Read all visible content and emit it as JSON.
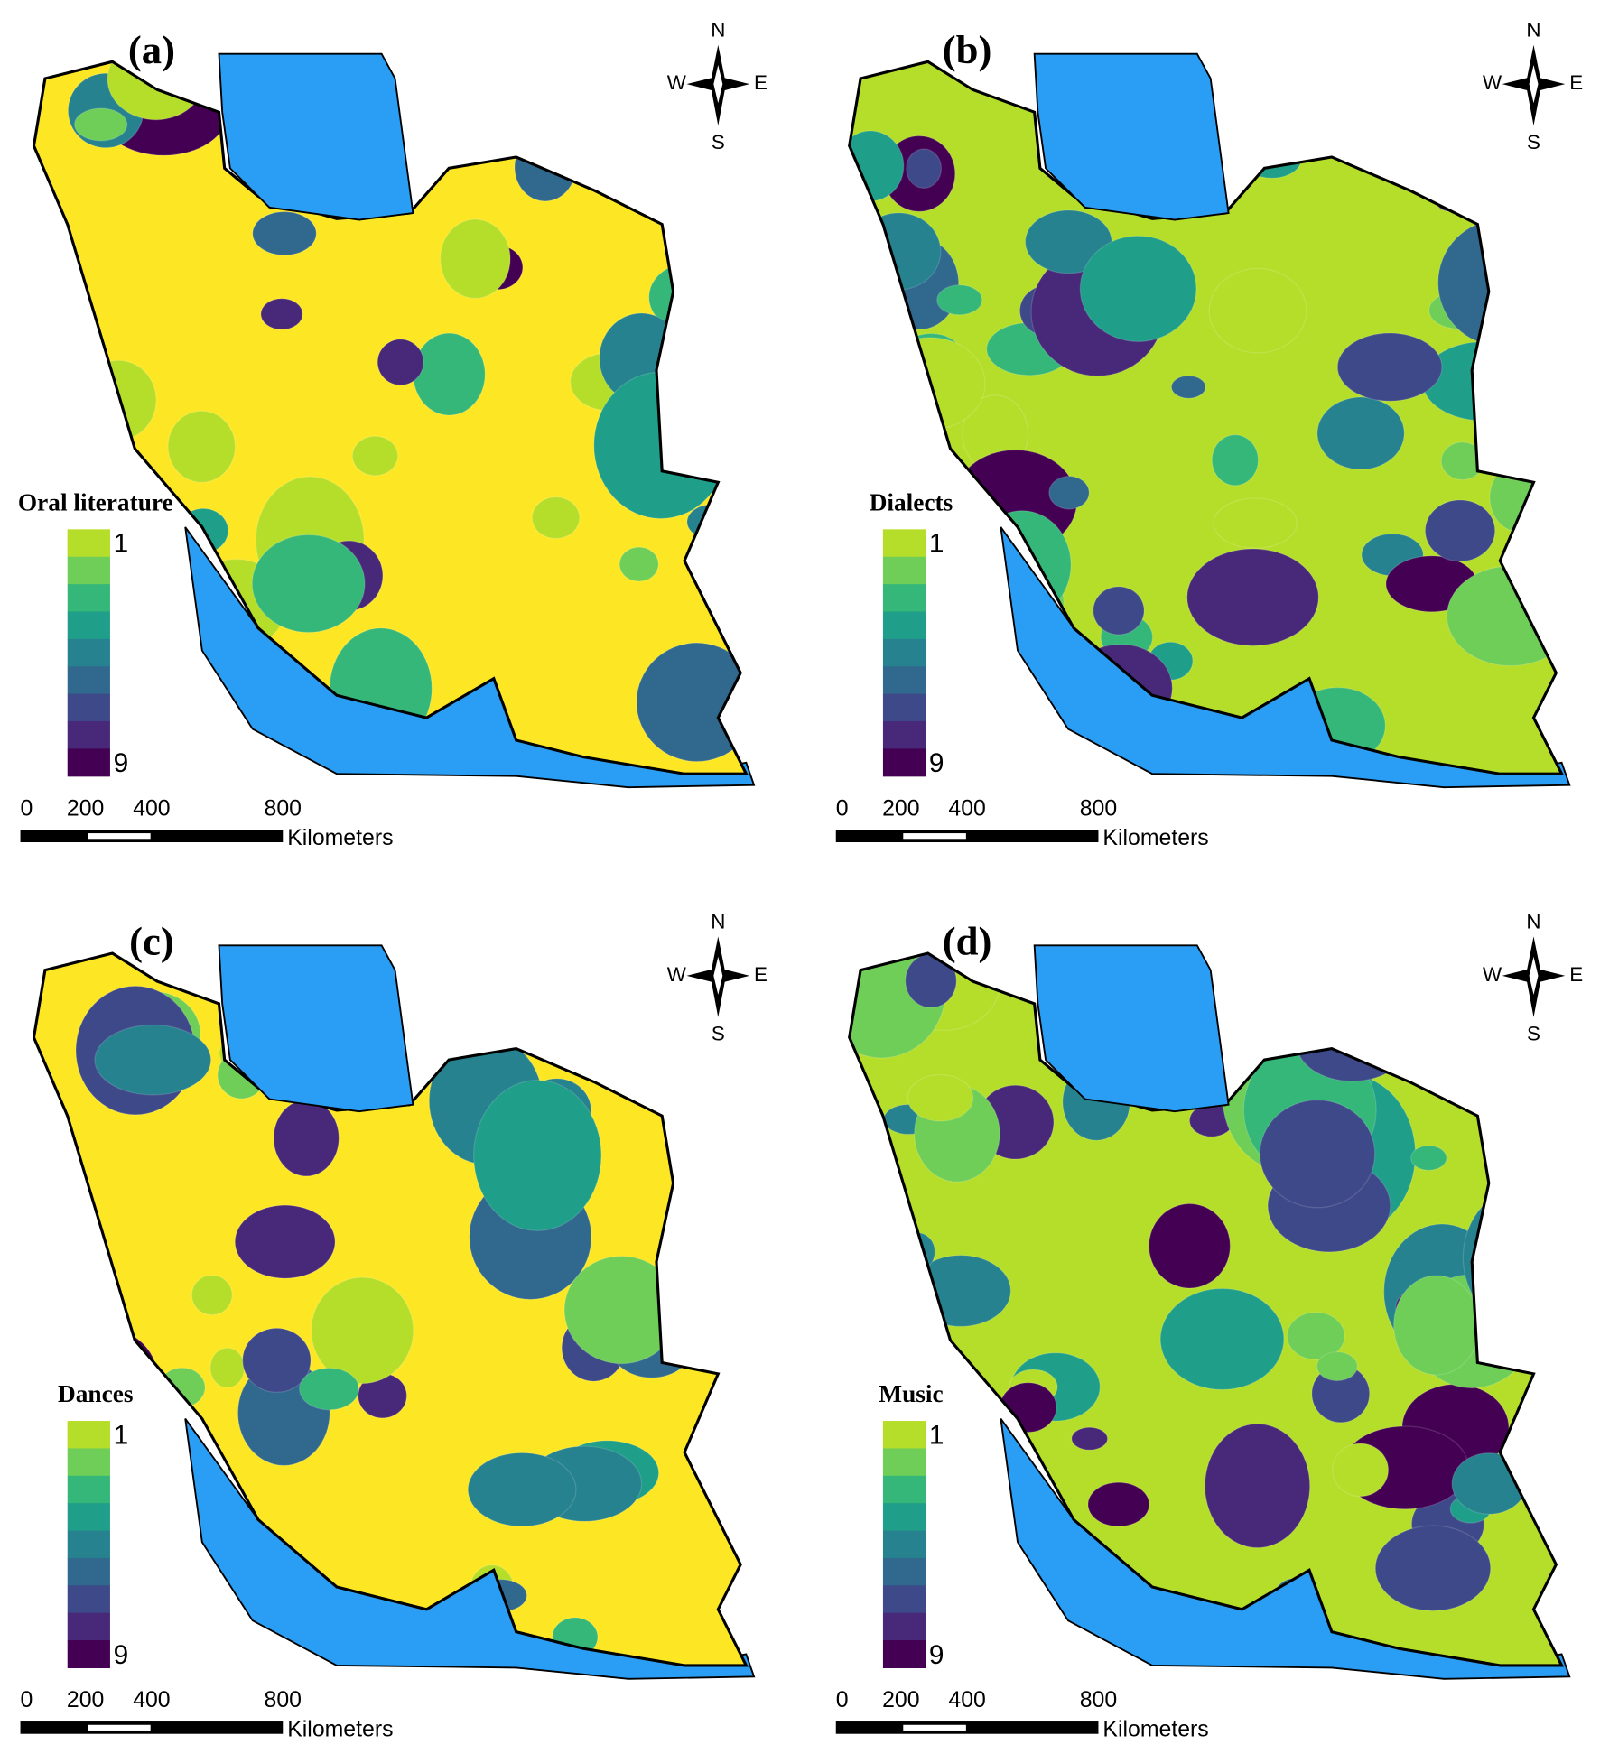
{
  "colors": [
    "#fde725",
    "#b5de2b",
    "#6ece58",
    "#35b779",
    "#1f9e89",
    "#26828e",
    "#31688e",
    "#3e4989",
    "#482878",
    "#440154"
  ],
  "water_color": "#2a9df4",
  "panels": [
    {
      "label": "(a)",
      "legend": {
        "title": "Oral literature",
        "min": "1",
        "max": "9"
      },
      "scale": {
        "ticks": [
          "0",
          "200",
          "400",
          "800"
        ],
        "unit": "Kilometers"
      },
      "compass": {
        "n": "N",
        "s": "S",
        "w": "W",
        "e": "E"
      }
    },
    {
      "label": "(b)",
      "legend": {
        "title": "Dialects",
        "min": "1",
        "max": "9"
      },
      "scale": {
        "ticks": [
          "0",
          "200",
          "400",
          "800"
        ],
        "unit": "Kilometers"
      },
      "compass": {
        "n": "N",
        "s": "S",
        "w": "W",
        "e": "E"
      }
    },
    {
      "label": "(c)",
      "legend": {
        "title": "Dances",
        "min": "1",
        "max": "9"
      },
      "scale": {
        "ticks": [
          "0",
          "200",
          "400",
          "800"
        ],
        "unit": "Kilometers"
      },
      "compass": {
        "n": "N",
        "s": "S",
        "w": "W",
        "e": "E"
      }
    },
    {
      "label": "(d)",
      "legend": {
        "title": "Music",
        "min": "1",
        "max": "9"
      },
      "scale": {
        "ticks": [
          "0",
          "200",
          "400",
          "800"
        ],
        "unit": "Kilometers"
      },
      "compass": {
        "n": "N",
        "s": "S",
        "w": "W",
        "e": "E"
      }
    }
  ]
}
